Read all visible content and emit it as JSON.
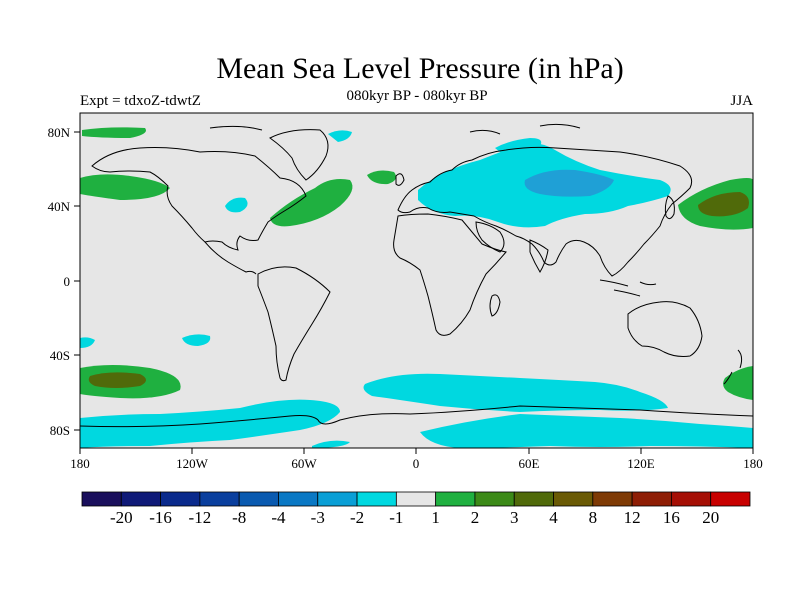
{
  "title": "Mean Sea Level Pressure (in hPa)",
  "experiment": "Expt = tdxoZ-tdwtZ",
  "period": "080kyr BP - 080kyr BP",
  "season": "JJA",
  "lat_ticks": [
    "80N",
    "40N",
    "0",
    "40S",
    "80S"
  ],
  "lon_ticks": [
    "180",
    "120W",
    "60W",
    "0",
    "60E",
    "120E",
    "180"
  ],
  "colorbar": {
    "labels": [
      "-20",
      "-16",
      "-12",
      "-8",
      "-4",
      "-3",
      "-2",
      "-1",
      "1",
      "2",
      "3",
      "4",
      "8",
      "12",
      "16",
      "20"
    ],
    "colors": [
      "#1a0f5c",
      "#0f1a78",
      "#0a2a8c",
      "#0a3f9e",
      "#0a5ab0",
      "#0a78c4",
      "#0a9fd6",
      "#00d8e0",
      "#e6e6e6",
      "#1fb040",
      "#3c8a18",
      "#506a0a",
      "#6a5a05",
      "#7e3a05",
      "#8e1e05",
      "#a50f05",
      "#c80000"
    ]
  },
  "colors": {
    "background": "#e6e6e6",
    "neg1": "#00d8e0",
    "neg2": "#1fa0d6",
    "pos1": "#1fb040",
    "pos2": "#3c8a18",
    "pos3": "#506a0a"
  }
}
